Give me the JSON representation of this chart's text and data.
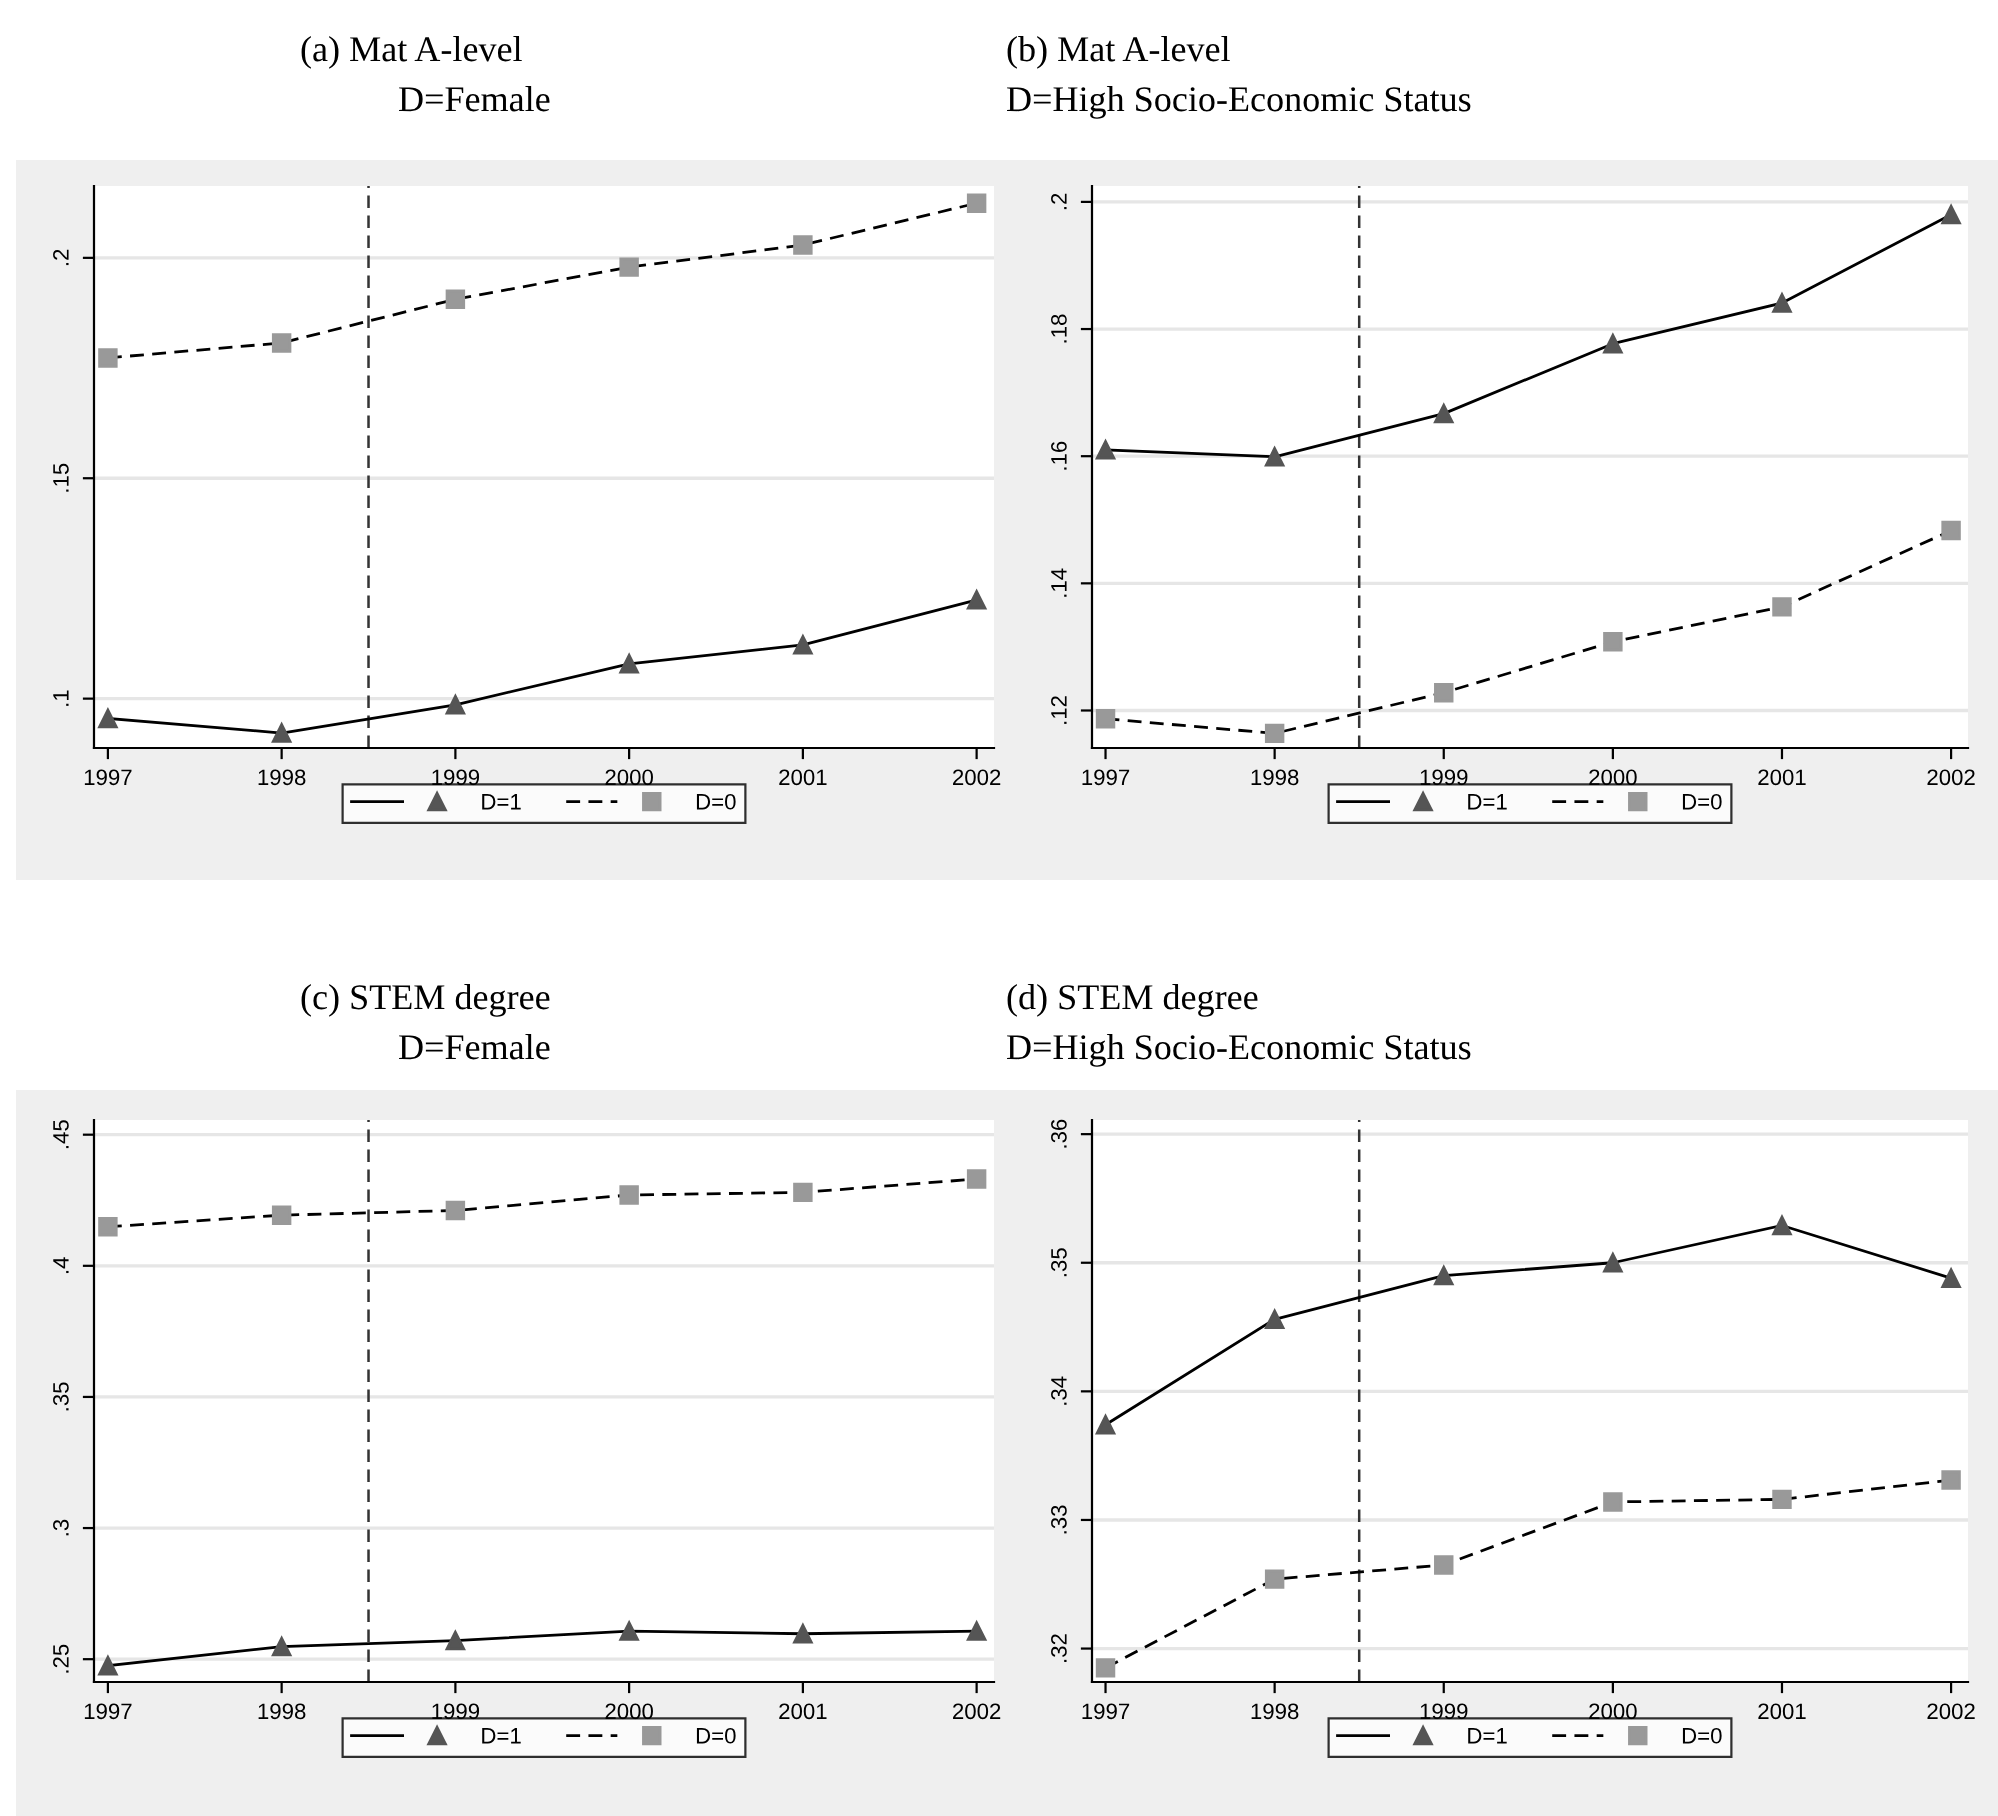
{
  "chart_data": [
    {
      "type": "line",
      "title": "(a) Mat A-level",
      "subtitle": "D=Female",
      "x": [
        1997,
        1998,
        1999,
        2000,
        2001,
        2002
      ],
      "xlim": [
        1996.92,
        2002.1
      ],
      "xticks": [
        1997,
        1998,
        1999,
        2000,
        2001,
        2002
      ],
      "ylim": [
        0.0888,
        0.2163
      ],
      "yticks": [
        {
          "value": 0.1,
          "label": ".1"
        },
        {
          "value": 0.15,
          "label": ".15"
        },
        {
          "value": 0.2,
          "label": ".2"
        }
      ],
      "grid": "y",
      "legend": "bottom",
      "ref_lines": [
        {
          "axis": "x",
          "value": 1998.5,
          "color": "#333333",
          "line_style": "dashed"
        }
      ],
      "series": [
        {
          "name": "D=1",
          "color": "#555555",
          "marker": "triangle",
          "line_style": "solid",
          "values": [
            0.0955,
            0.0922,
            0.0986,
            0.1079,
            0.1122,
            0.1224
          ]
        },
        {
          "name": "D=0",
          "color": "#999999",
          "marker": "square",
          "line_style": "dashed",
          "values": [
            0.1773,
            0.1807,
            0.1906,
            0.1979,
            0.2029,
            0.2124
          ]
        }
      ]
    },
    {
      "type": "line",
      "title": "(b) Mat A-level",
      "subtitle": "D=High Socio-Economic Status",
      "x": [
        1997,
        1998,
        1999,
        2000,
        2001,
        2002
      ],
      "xlim": [
        1996.92,
        2002.1
      ],
      "xticks": [
        1997,
        1998,
        1999,
        2000,
        2001,
        2002
      ],
      "ylim": [
        0.1141,
        0.2025
      ],
      "yticks": [
        {
          "value": 0.12,
          "label": ".12"
        },
        {
          "value": 0.14,
          "label": ".14"
        },
        {
          "value": 0.16,
          "label": ".16"
        },
        {
          "value": 0.18,
          "label": ".18"
        },
        {
          "value": 0.2,
          "label": ".2"
        }
      ],
      "grid": "y",
      "legend": "bottom",
      "ref_lines": [
        {
          "axis": "x",
          "value": 1998.5,
          "color": "#333333",
          "line_style": "dashed"
        }
      ],
      "series": [
        {
          "name": "D=1",
          "color": "#555555",
          "marker": "triangle",
          "line_style": "solid",
          "values": [
            0.161,
            0.1599,
            0.1667,
            0.1777,
            0.1841,
            0.198
          ]
        },
        {
          "name": "D=0",
          "color": "#999999",
          "marker": "square",
          "line_style": "dashed",
          "values": [
            0.1187,
            0.1164,
            0.1228,
            0.1308,
            0.1363,
            0.1483
          ]
        }
      ]
    },
    {
      "type": "line",
      "title": "(c) STEM degree",
      "subtitle": "D=Female",
      "x": [
        1997,
        1998,
        1999,
        2000,
        2001,
        2002
      ],
      "xlim": [
        1996.92,
        2002.1
      ],
      "xticks": [
        1997,
        1998,
        1999,
        2000,
        2001,
        2002
      ],
      "ylim": [
        0.2413,
        0.4556
      ],
      "yticks": [
        {
          "value": 0.25,
          "label": ".25"
        },
        {
          "value": 0.3,
          "label": ".3"
        },
        {
          "value": 0.35,
          "label": ".35"
        },
        {
          "value": 0.4,
          "label": ".4"
        },
        {
          "value": 0.45,
          "label": ".45"
        }
      ],
      "grid": "y",
      "legend": "bottom",
      "ref_lines": [
        {
          "axis": "x",
          "value": 1998.5,
          "color": "#333333",
          "line_style": "dashed"
        }
      ],
      "series": [
        {
          "name": "D=1",
          "color": "#555555",
          "marker": "triangle",
          "line_style": "solid",
          "values": [
            0.2475,
            0.2548,
            0.2571,
            0.2607,
            0.2597,
            0.2607
          ]
        },
        {
          "name": "D=0",
          "color": "#999999",
          "marker": "square",
          "line_style": "dashed",
          "values": [
            0.4149,
            0.4193,
            0.4211,
            0.427,
            0.428,
            0.4331
          ]
        }
      ]
    },
    {
      "type": "line",
      "title": "(d) STEM degree",
      "subtitle": "D=High Socio-Economic Status",
      "x": [
        1997,
        1998,
        1999,
        2000,
        2001,
        2002
      ],
      "xlim": [
        1996.92,
        2002.1
      ],
      "xticks": [
        1997,
        1998,
        1999,
        2000,
        2001,
        2002
      ],
      "ylim": [
        0.3174,
        0.3611
      ],
      "yticks": [
        {
          "value": 0.32,
          "label": ".32"
        },
        {
          "value": 0.33,
          "label": ".33"
        },
        {
          "value": 0.34,
          "label": ".34"
        },
        {
          "value": 0.35,
          "label": ".35"
        },
        {
          "value": 0.36,
          "label": ".36"
        }
      ],
      "grid": "y",
      "legend": "bottom",
      "ref_lines": [
        {
          "axis": "x",
          "value": 1998.5,
          "color": "#333333",
          "line_style": "dashed"
        }
      ],
      "series": [
        {
          "name": "D=1",
          "color": "#555555",
          "marker": "triangle",
          "line_style": "solid",
          "values": [
            0.3374,
            0.3456,
            0.349,
            0.35,
            0.3529,
            0.3488
          ]
        },
        {
          "name": "D=0",
          "color": "#999999",
          "marker": "square",
          "line_style": "dashed",
          "values": [
            0.3185,
            0.3254,
            0.3265,
            0.3314,
            0.3316,
            0.3331
          ]
        }
      ]
    }
  ]
}
